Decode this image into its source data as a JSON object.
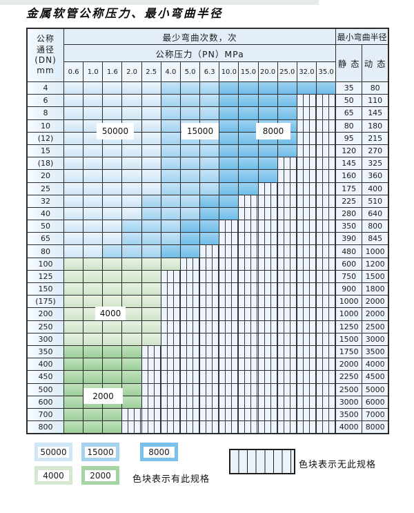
{
  "page": {
    "title": "金属软管公称压力、最小弯曲半径"
  },
  "table": {
    "header": {
      "dn_lines": [
        "公称",
        "通径",
        "(DN)",
        "mm"
      ],
      "bend_cycles": "最少弯曲次数，次",
      "pressure": "公称压力（PN）MPa",
      "radius": "最小弯曲半径",
      "static": "静 态",
      "dynamic": "动 态",
      "pressure_columns": [
        "0.6",
        "1.0",
        "1.6",
        "2.0",
        "2.5",
        "4.0",
        "5.0",
        "6.3",
        "10.0",
        "15.0",
        "20.0",
        "25.0",
        "32.0",
        "35.0"
      ]
    },
    "rows": [
      {
        "dn": "4",
        "static": "35",
        "dynamic": "80",
        "zones": [
          [
            "b50",
            5
          ],
          [
            "b15",
            3
          ],
          [
            "b8",
            6
          ]
        ]
      },
      {
        "dn": "6",
        "static": "50",
        "dynamic": "110",
        "zones": [
          [
            "b50",
            5
          ],
          [
            "b15",
            3
          ],
          [
            "b8",
            4
          ],
          [
            "x",
            2
          ]
        ]
      },
      {
        "dn": "8",
        "static": "65",
        "dynamic": "145",
        "zones": [
          [
            "b50",
            5
          ],
          [
            "b15",
            3
          ],
          [
            "b8",
            4
          ],
          [
            "x",
            2
          ]
        ]
      },
      {
        "dn": "10",
        "static": "80",
        "dynamic": "180",
        "zones": [
          [
            "b50",
            5
          ],
          [
            "b15",
            3
          ],
          [
            "b8",
            4
          ],
          [
            "x",
            2
          ]
        ]
      },
      {
        "dn": "(12)",
        "static": "95",
        "dynamic": "215",
        "zones": [
          [
            "b50",
            5
          ],
          [
            "b15",
            3
          ],
          [
            "b8",
            4
          ],
          [
            "x",
            2
          ]
        ]
      },
      {
        "dn": "15",
        "static": "120",
        "dynamic": "270",
        "zones": [
          [
            "b50",
            5
          ],
          [
            "b15",
            3
          ],
          [
            "b8",
            4
          ],
          [
            "x",
            2
          ]
        ]
      },
      {
        "dn": "(18)",
        "static": "145",
        "dynamic": "325",
        "zones": [
          [
            "b50",
            5
          ],
          [
            "b15",
            3
          ],
          [
            "b8",
            3
          ],
          [
            "x",
            3
          ]
        ]
      },
      {
        "dn": "20",
        "static": "160",
        "dynamic": "360",
        "zones": [
          [
            "b50",
            5
          ],
          [
            "b15",
            3
          ],
          [
            "b8",
            3
          ],
          [
            "x",
            3
          ]
        ]
      },
      {
        "dn": "25",
        "static": "175",
        "dynamic": "400",
        "zones": [
          [
            "b50",
            5
          ],
          [
            "b15",
            3
          ],
          [
            "b8",
            2
          ],
          [
            "x",
            4
          ]
        ]
      },
      {
        "dn": "32",
        "static": "225",
        "dynamic": "510",
        "zones": [
          [
            "b50",
            4
          ],
          [
            "b15",
            3
          ],
          [
            "b8",
            2
          ],
          [
            "x",
            5
          ]
        ]
      },
      {
        "dn": "40",
        "static": "280",
        "dynamic": "640",
        "zones": [
          [
            "b50",
            4
          ],
          [
            "b15",
            3
          ],
          [
            "b8",
            2
          ],
          [
            "x",
            5
          ]
        ]
      },
      {
        "dn": "50",
        "static": "350",
        "dynamic": "800",
        "zones": [
          [
            "b50",
            3
          ],
          [
            "b15",
            3
          ],
          [
            "b8",
            2
          ],
          [
            "x",
            6
          ]
        ]
      },
      {
        "dn": "65",
        "static": "390",
        "dynamic": "845",
        "zones": [
          [
            "b50",
            3
          ],
          [
            "b15",
            3
          ],
          [
            "b8",
            2
          ],
          [
            "x",
            6
          ]
        ]
      },
      {
        "dn": "80",
        "static": "480",
        "dynamic": "1000",
        "zones": [
          [
            "b50",
            2
          ],
          [
            "b15",
            3
          ],
          [
            "b8",
            2
          ],
          [
            "x",
            7
          ]
        ]
      },
      {
        "dn": "100",
        "static": "600",
        "dynamic": "1200",
        "zones": [
          [
            "g4",
            6
          ],
          [
            "x",
            8
          ]
        ]
      },
      {
        "dn": "125",
        "static": "750",
        "dynamic": "1500",
        "zones": [
          [
            "g4",
            5
          ],
          [
            "x",
            9
          ]
        ]
      },
      {
        "dn": "150",
        "static": "900",
        "dynamic": "1800",
        "zones": [
          [
            "g4",
            5
          ],
          [
            "x",
            9
          ]
        ]
      },
      {
        "dn": "(175)",
        "static": "1000",
        "dynamic": "2000",
        "zones": [
          [
            "g4",
            5
          ],
          [
            "x",
            9
          ]
        ]
      },
      {
        "dn": "200",
        "static": "1000",
        "dynamic": "2000",
        "zones": [
          [
            "g4",
            5
          ],
          [
            "x",
            9
          ]
        ]
      },
      {
        "dn": "250",
        "static": "1250",
        "dynamic": "2500",
        "zones": [
          [
            "g4",
            5
          ],
          [
            "x",
            9
          ]
        ]
      },
      {
        "dn": "300",
        "static": "1500",
        "dynamic": "3000",
        "zones": [
          [
            "g4",
            5
          ],
          [
            "x",
            9
          ]
        ]
      },
      {
        "dn": "350",
        "static": "1750",
        "dynamic": "3500",
        "zones": [
          [
            "g2",
            4
          ],
          [
            "x",
            10
          ]
        ]
      },
      {
        "dn": "400",
        "static": "2000",
        "dynamic": "4000",
        "zones": [
          [
            "g2",
            4
          ],
          [
            "x",
            10
          ]
        ]
      },
      {
        "dn": "450",
        "static": "2250",
        "dynamic": "4500",
        "zones": [
          [
            "g2",
            4
          ],
          [
            "x",
            10
          ]
        ]
      },
      {
        "dn": "500",
        "static": "2500",
        "dynamic": "5000",
        "zones": [
          [
            "g2",
            4
          ],
          [
            "x",
            10
          ]
        ]
      },
      {
        "dn": "600",
        "static": "3000",
        "dynamic": "6000",
        "zones": [
          [
            "g2",
            4
          ],
          [
            "x",
            10
          ]
        ]
      },
      {
        "dn": "700",
        "static": "3500",
        "dynamic": "7000",
        "zones": [
          [
            "g2",
            3
          ],
          [
            "x",
            11
          ]
        ]
      },
      {
        "dn": "800",
        "static": "4000",
        "dynamic": "8000",
        "zones": [
          [
            "g2",
            3
          ],
          [
            "x",
            11
          ]
        ]
      }
    ],
    "zone_labels": [
      {
        "id": "z50000",
        "text": "50000"
      },
      {
        "id": "z15000",
        "text": "15000"
      },
      {
        "id": "z8000",
        "text": "8000"
      },
      {
        "id": "z4000",
        "text": "4000"
      },
      {
        "id": "z2000",
        "text": "2000"
      }
    ]
  },
  "legend": {
    "swatches": [
      {
        "label": "50000",
        "tone": "b50"
      },
      {
        "label": "15000",
        "tone": "b15"
      },
      {
        "label": "8000",
        "tone": "b8"
      },
      {
        "label": "4000",
        "tone": "g4"
      },
      {
        "label": "2000",
        "tone": "g2"
      }
    ],
    "has_spec_text": "色块表示有此规格",
    "no_spec_text": "色块表示无此规格"
  },
  "colors": {
    "cycle_50000": "#cfe6f7",
    "cycle_15000": "#a5d3ef",
    "cycle_8000": "#79c0ea",
    "cycle_4000": "#d5e8cf",
    "cycle_2000": "#a4d4a1",
    "no_spec_bg": "#eef4fb",
    "grid_line": "#2b2b2b"
  }
}
